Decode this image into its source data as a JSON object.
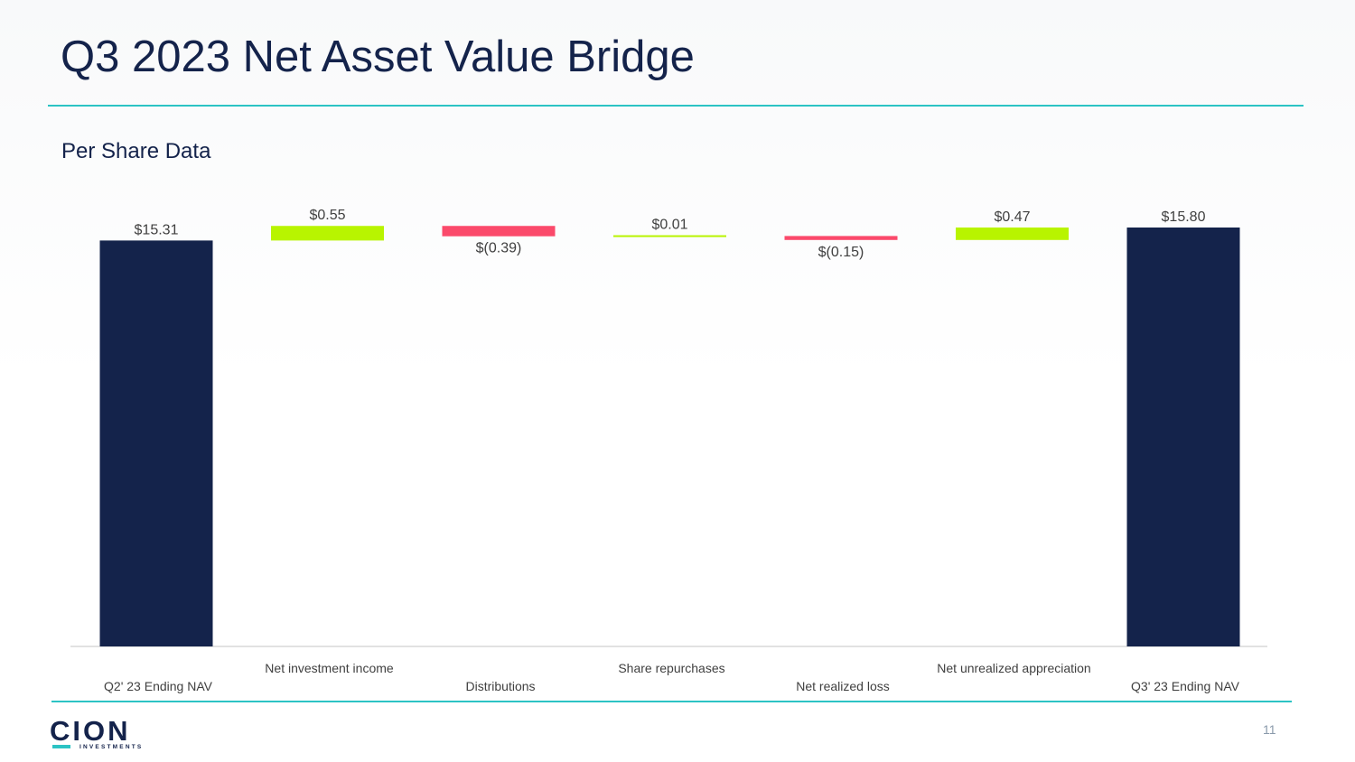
{
  "slide": {
    "title": "Q3 2023 Net Asset Value Bridge",
    "subtitle": "Per Share Data",
    "page_number": "11"
  },
  "logo": {
    "name": "CION",
    "tagline": "INVESTMENTS"
  },
  "colors": {
    "total": "#14234b",
    "increase": "#b8f400",
    "decrease": "#fb4a6b",
    "accent": "#2cc3c4",
    "label": "#404040"
  },
  "chart_data": {
    "type": "bar",
    "subtype": "waterfall",
    "title": "Per Share Data",
    "categories": [
      "Q2' 23 Ending NAV",
      "Net investment income",
      "Distributions",
      "Share repurchases",
      "Net realized loss",
      "Net unrealized appreciation",
      "Q3' 23 Ending NAV"
    ],
    "values": [
      15.31,
      0.55,
      -0.39,
      0.01,
      -0.15,
      0.47,
      15.8
    ],
    "kinds": [
      "total",
      "increase",
      "decrease",
      "increase",
      "decrease",
      "increase",
      "total"
    ],
    "data_labels": [
      "$15.31",
      "$0.55",
      "$(0.39)",
      "$0.01",
      "$(0.15)",
      "$0.47",
      "$15.80"
    ],
    "ylim": [
      0,
      15.8
    ],
    "xlabel": "",
    "ylabel": "",
    "grid": false,
    "legend": "none"
  }
}
